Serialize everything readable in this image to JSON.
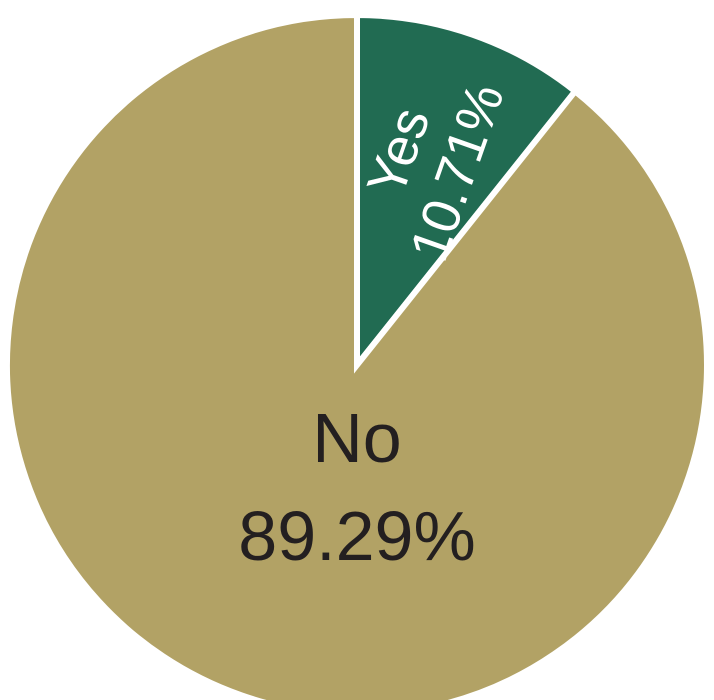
{
  "chart_data": {
    "type": "pie",
    "title": "",
    "start_angle_deg": 0,
    "direction": "clockwise",
    "slices": [
      {
        "label": "Yes",
        "value": 10.71,
        "value_text": "10.71%",
        "color": "#216b52",
        "text_color": "#ffffff"
      },
      {
        "label": "No",
        "value": 89.29,
        "value_text": "89.29%",
        "color": "#b2a265",
        "text_color": "#231f20"
      }
    ]
  }
}
